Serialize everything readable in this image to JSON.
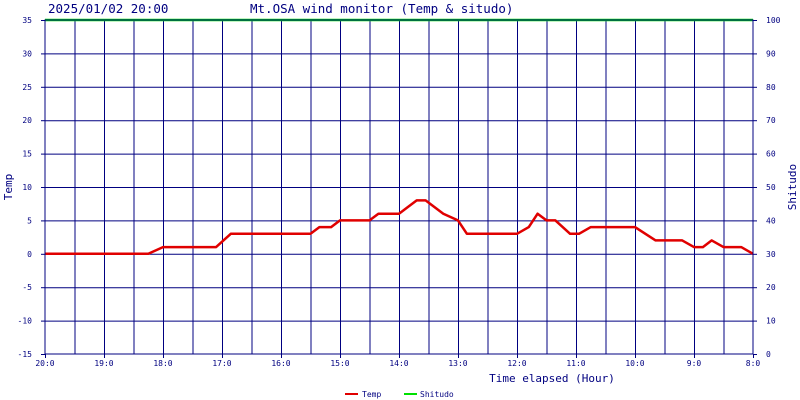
{
  "chart_data": {
    "type": "line",
    "timestamp": "2025/01/02 20:00",
    "title": "Mt.OSA wind monitor (Temp & situdo)",
    "xlabel": "Time elapsed (Hour)",
    "ylabel_left": "Temp",
    "ylabel_right": "Shitudo",
    "ylim_left": [
      -15,
      35
    ],
    "ylim_right": [
      0,
      100
    ],
    "yticks_left": [
      "35",
      "30",
      "25",
      "20",
      "15",
      "10",
      "5",
      "0",
      "-5",
      "-10",
      "-15"
    ],
    "yticks_right": [
      "100",
      "90",
      "80",
      "70",
      "60",
      "50",
      "40",
      "30",
      "20",
      "10",
      "0"
    ],
    "x_tick_labels": [
      "20:0",
      "19:0",
      "18:0",
      "17:0",
      "16:0",
      "15:0",
      "14:0",
      "13:0",
      "12:0",
      "11:0",
      "10:0",
      "9:0",
      "8:0"
    ],
    "grid": true,
    "legend_placement": "bottom-center",
    "colors": {
      "temp": "#e00000",
      "shitudo": "#00e000",
      "grid": "#000080",
      "text": "#000080"
    },
    "series": [
      {
        "name": "Temp",
        "axis": "left",
        "points": [
          [
            0,
            0
          ],
          [
            1,
            0
          ],
          [
            2,
            0
          ],
          [
            3,
            0
          ],
          [
            3.5,
            0
          ],
          [
            4,
            1
          ],
          [
            5,
            1
          ],
          [
            5.8,
            1
          ],
          [
            6.3,
            3
          ],
          [
            7,
            3
          ],
          [
            8,
            3
          ],
          [
            9,
            3
          ],
          [
            9.3,
            4
          ],
          [
            9.7,
            4
          ],
          [
            10,
            5
          ],
          [
            11,
            5
          ],
          [
            11.3,
            6
          ],
          [
            12,
            6
          ],
          [
            12.3,
            7
          ],
          [
            12.6,
            8
          ],
          [
            12.9,
            8
          ],
          [
            13.5,
            6
          ],
          [
            14,
            5
          ],
          [
            14.3,
            3
          ],
          [
            15,
            3
          ],
          [
            16,
            3
          ],
          [
            16.4,
            4
          ],
          [
            16.7,
            6
          ],
          [
            17,
            5
          ],
          [
            17.3,
            5
          ],
          [
            17.8,
            3
          ],
          [
            18.1,
            3
          ],
          [
            18.5,
            4
          ],
          [
            19,
            4
          ],
          [
            20,
            4
          ],
          [
            20.7,
            2
          ],
          [
            21,
            2
          ],
          [
            21.6,
            2
          ],
          [
            22,
            1
          ],
          [
            22.3,
            1
          ],
          [
            22.6,
            2
          ],
          [
            23,
            1
          ],
          [
            23.6,
            1
          ],
          [
            24,
            0
          ]
        ]
      },
      {
        "name": "Shitudo",
        "axis": "right",
        "points": [
          [
            0,
            100
          ],
          [
            24,
            100
          ]
        ]
      }
    ]
  }
}
